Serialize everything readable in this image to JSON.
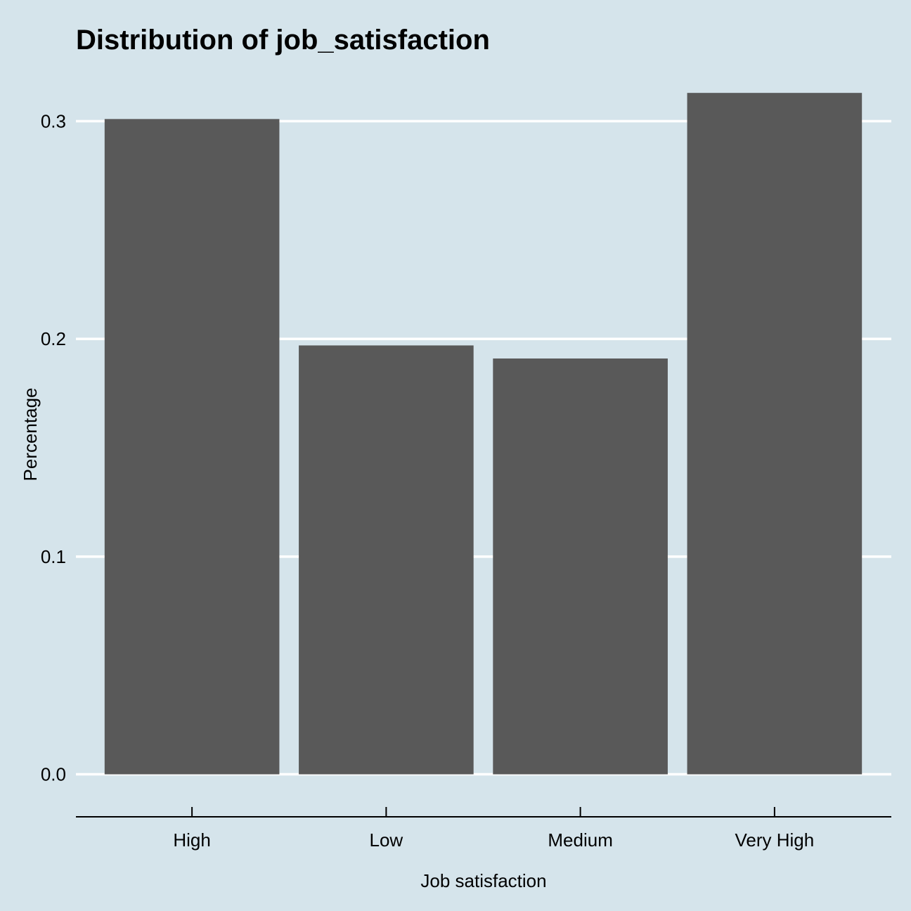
{
  "chart_data": {
    "type": "bar",
    "title": "Distribution of job_satisfaction",
    "xlabel": "Job satisfaction",
    "ylabel": "Percentage",
    "categories": [
      "High",
      "Low",
      "Medium",
      "Very High"
    ],
    "values": [
      0.301,
      0.197,
      0.191,
      0.313
    ],
    "ylim": [
      -0.015,
      0.325
    ],
    "yticks": [
      0.0,
      0.1,
      0.2,
      0.3
    ],
    "ytick_labels": [
      "0.0",
      "0.1",
      "0.2",
      "0.3"
    ],
    "grid": "horizontal major",
    "legend": "none"
  },
  "colors": {
    "background": "#d5e4eb",
    "bar": "#595959",
    "grid": "#ffffff",
    "axis": "#000000"
  }
}
